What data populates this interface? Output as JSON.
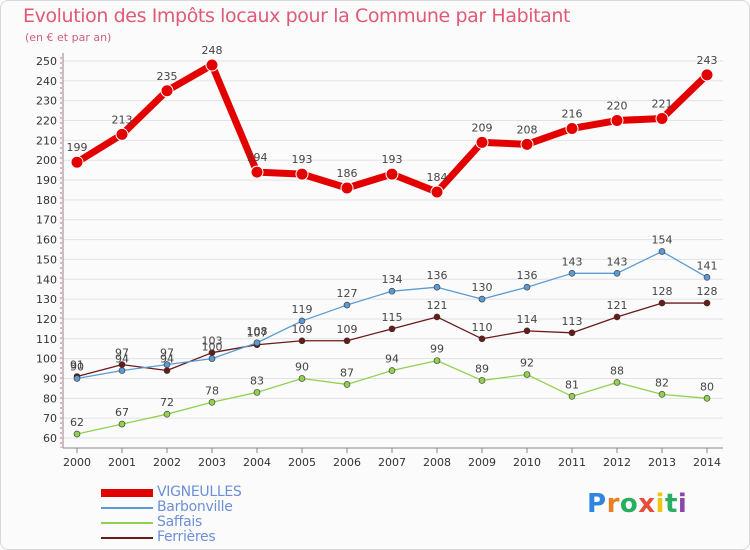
{
  "chart_data": {
    "type": "line",
    "title": "Evolution des Impôts locaux pour la Commune par Habitant",
    "subtitle": "(en € et par an)",
    "x": [
      "2000",
      "2001",
      "2002",
      "2003",
      "2004",
      "2005",
      "2006",
      "2007",
      "2008",
      "2009",
      "2010",
      "2011",
      "2012",
      "2013",
      "2014"
    ],
    "ylim": [
      60,
      250
    ],
    "yticks": [
      60,
      70,
      80,
      90,
      100,
      110,
      120,
      130,
      140,
      150,
      160,
      170,
      180,
      190,
      200,
      210,
      220,
      230,
      240,
      250
    ],
    "grid": "horizontal",
    "series": [
      {
        "name": "VIGNEULLES",
        "color": "#e30000",
        "values": [
          199,
          213,
          235,
          248,
          194,
          193,
          186,
          193,
          184,
          209,
          208,
          216,
          220,
          221,
          243
        ]
      },
      {
        "name": "Barbonville",
        "color": "#5b9bd5",
        "values": [
          90,
          94,
          97,
          100,
          108,
          119,
          127,
          134,
          136,
          130,
          136,
          143,
          143,
          154,
          141
        ]
      },
      {
        "name": "Saffais",
        "color": "#92d050",
        "values": [
          62,
          67,
          72,
          78,
          83,
          90,
          87,
          94,
          99,
          89,
          92,
          81,
          88,
          82,
          80
        ]
      },
      {
        "name": "Ferrières",
        "color": "#6b1a1a",
        "values": [
          91,
          97,
          94,
          103,
          107,
          109,
          109,
          115,
          121,
          110,
          114,
          113,
          121,
          128,
          128
        ]
      }
    ]
  },
  "logo": {
    "text": "Proxiti",
    "letters": [
      "P",
      "r",
      "o",
      "x",
      "i",
      "t",
      "i"
    ],
    "colors": [
      "#2e86de",
      "#e67e22",
      "#27ae60",
      "#e74c3c",
      "#f1c40f",
      "#27ae60",
      "#8e44ad"
    ]
  }
}
